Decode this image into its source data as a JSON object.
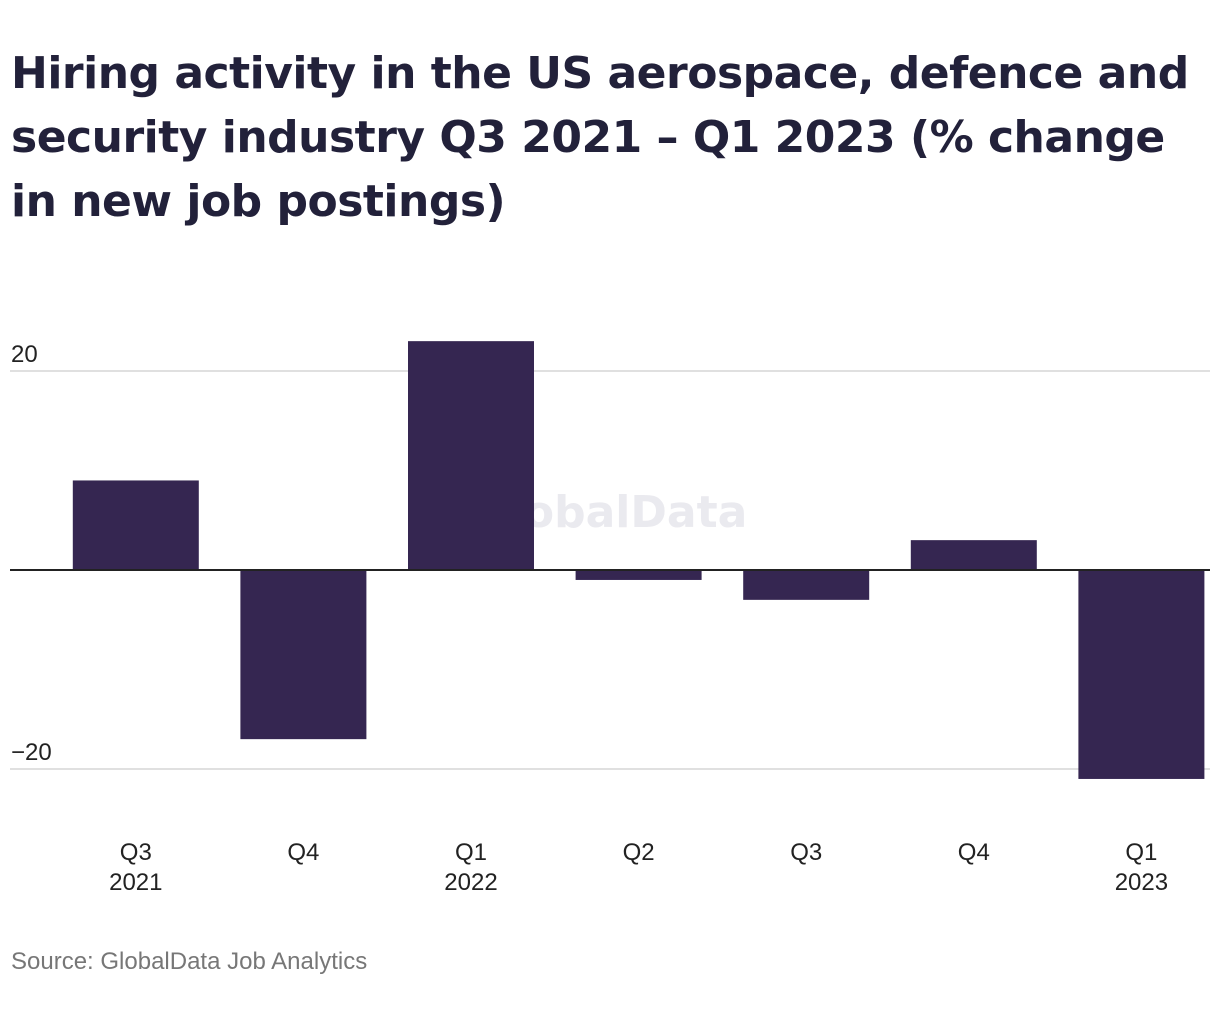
{
  "title": "Hiring activity in the US aerospace, defence and security industry Q3 2021 – Q1 2023 (% change in new job postings)",
  "source": "Source: GlobalData Job Analytics",
  "watermark": "GlobalData",
  "colors": {
    "bar": "#352651",
    "grid": "#d6d6d6",
    "zero_line": "#222222"
  },
  "chart_data": {
    "type": "bar",
    "categories": [
      [
        "Q3",
        "2021"
      ],
      [
        "Q4",
        ""
      ],
      [
        "Q1",
        "2022"
      ],
      [
        "Q2",
        ""
      ],
      [
        "Q3",
        ""
      ],
      [
        "Q4",
        ""
      ],
      [
        "Q1",
        "2023"
      ]
    ],
    "values": [
      9,
      -17,
      23,
      -1,
      -3,
      3,
      -21
    ],
    "y_ticks": [
      20,
      -20
    ],
    "y_tick_labels": [
      "20",
      "−20"
    ],
    "ylim": [
      -22,
      25
    ],
    "grid": true,
    "xlabel": "",
    "ylabel": ""
  }
}
